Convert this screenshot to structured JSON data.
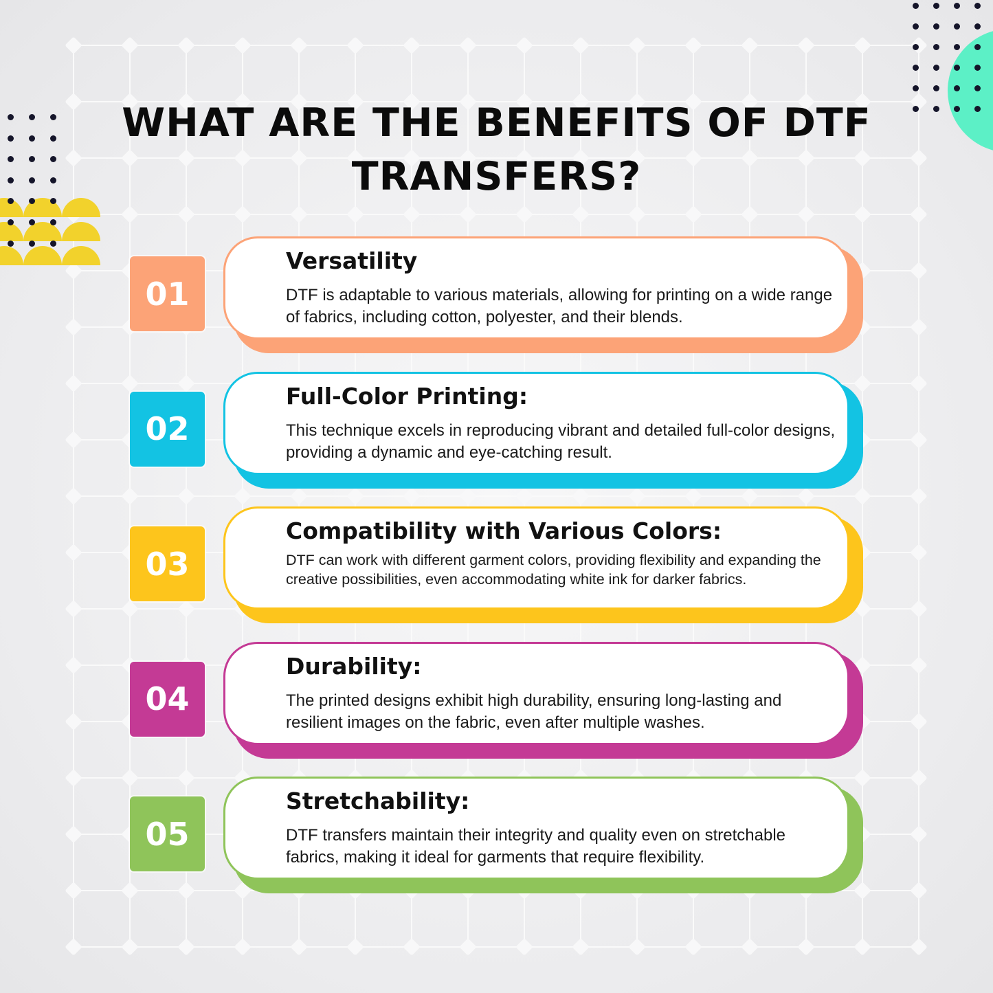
{
  "title": {
    "line1": "WHAT ARE THE BENEFITS OF DTF",
    "line2": "TRANSFERS?"
  },
  "colors": {
    "orange": "#fca377",
    "cyan": "#13c3e3",
    "yellow": "#fdc51c",
    "magenta": "#c43a95",
    "green": "#8fc45a",
    "teal_accent": "#5cf0c6",
    "yellow_accent": "#f2d22c"
  },
  "items": [
    {
      "number": "01",
      "heading": "Versatility",
      "description": "DTF is adaptable to various materials, allowing for printing on a wide range of fabrics, including cotton, polyester, and their blends.",
      "color": "#fca377"
    },
    {
      "number": "02",
      "heading": "Full-Color Printing:",
      "description": "This technique excels in reproducing vibrant and detailed full-color designs, providing a dynamic and eye-catching result.",
      "color": "#13c3e3"
    },
    {
      "number": "03",
      "heading": "Compatibility with Various Colors:",
      "description": "DTF can work with different garment colors, providing flexibility and expanding the creative possibilities, even accommodating white ink for darker fabrics.",
      "color": "#fdc51c"
    },
    {
      "number": "04",
      "heading": "Durability:",
      "description": "The printed designs exhibit high durability, ensuring long-lasting and resilient images on the fabric, even after multiple washes.",
      "color": "#c43a95"
    },
    {
      "number": "05",
      "heading": "Stretchability:",
      "description": "DTF transfers maintain their integrity and quality even on stretchable fabrics, making it ideal for garments that require flexibility.",
      "color": "#8fc45a"
    }
  ]
}
